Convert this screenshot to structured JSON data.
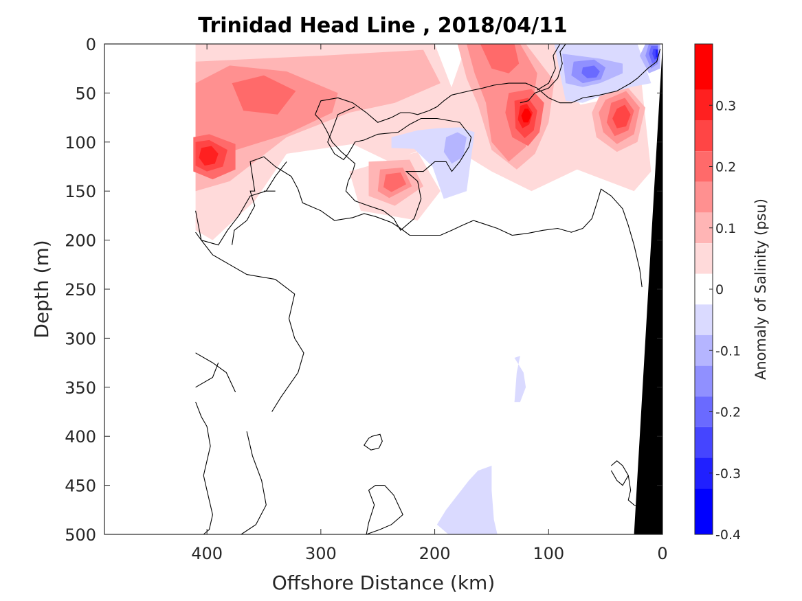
{
  "chart_data": {
    "type": "heatmap",
    "title": "Trinidad Head Line , 2018/04/11",
    "xlabel": "Offshore Distance (km)",
    "ylabel": "Depth (m)",
    "xlim": [
      490,
      0
    ],
    "ylim": [
      0,
      500
    ],
    "x_ticks": [
      400,
      300,
      200,
      100,
      0
    ],
    "y_ticks": [
      0,
      50,
      100,
      150,
      200,
      250,
      300,
      350,
      400,
      450,
      500
    ],
    "colorbar": {
      "label": "Anomaly of Salinity (psu)",
      "range": [
        -0.4,
        0.4
      ],
      "ticks": [
        0.3,
        0.2,
        0.1,
        0,
        -0.1,
        -0.2,
        -0.3,
        -0.4
      ],
      "levels": [
        0.35,
        0.3,
        0.25,
        0.2,
        0.15,
        0.1,
        0.05,
        0,
        -0.05,
        -0.1,
        -0.15,
        -0.2,
        -0.25,
        -0.3,
        -0.35
      ]
    },
    "level_colors": {
      "0.35": "#ff0000",
      "0.3": "#ff2020",
      "0.25": "#ff4545",
      "0.2": "#ff6a6a",
      "0.15": "#ff9090",
      "0.1": "#ffb5b5",
      "0.05": "#ffdada",
      "0": "#ffffff",
      "-0.05": "#dadaff",
      "-0.1": "#b5b5ff",
      "-0.15": "#9090ff",
      "-0.2": "#6a6aff",
      "-0.25": "#4545ff",
      "-0.3": "#2020ff",
      "-0.35": "#0000ff"
    },
    "anomaly_features": [
      {
        "sign": "positive",
        "peak": 0.2,
        "x_range": [
          410,
          180
        ],
        "depth_range": [
          0,
          200
        ]
      },
      {
        "sign": "positive",
        "peak": 0.35,
        "center": [
          395,
          115
        ]
      },
      {
        "sign": "positive",
        "peak": 0.2,
        "center": [
          355,
          50
        ]
      },
      {
        "sign": "positive",
        "peak": 0.25,
        "center": [
          235,
          140
        ]
      },
      {
        "sign": "positive",
        "peak": 0.25,
        "center": [
          145,
          10
        ]
      },
      {
        "sign": "positive",
        "peak": 0.35,
        "center": [
          118,
          75
        ]
      },
      {
        "sign": "positive",
        "peak": 0.3,
        "center": [
          30,
          65
        ]
      },
      {
        "sign": "negative",
        "peak": -0.2,
        "center": [
          65,
          30
        ]
      },
      {
        "sign": "negative",
        "peak": -0.3,
        "center": [
          12,
          20
        ]
      },
      {
        "sign": "negative",
        "peak": -0.1,
        "center": [
          195,
          110
        ]
      },
      {
        "sign": "negative",
        "peak": -0.05,
        "center": [
          165,
          455
        ]
      },
      {
        "sign": "negative",
        "peak": -0.05,
        "center": [
          125,
          350
        ]
      }
    ],
    "bathymetry_color": "#000000"
  }
}
